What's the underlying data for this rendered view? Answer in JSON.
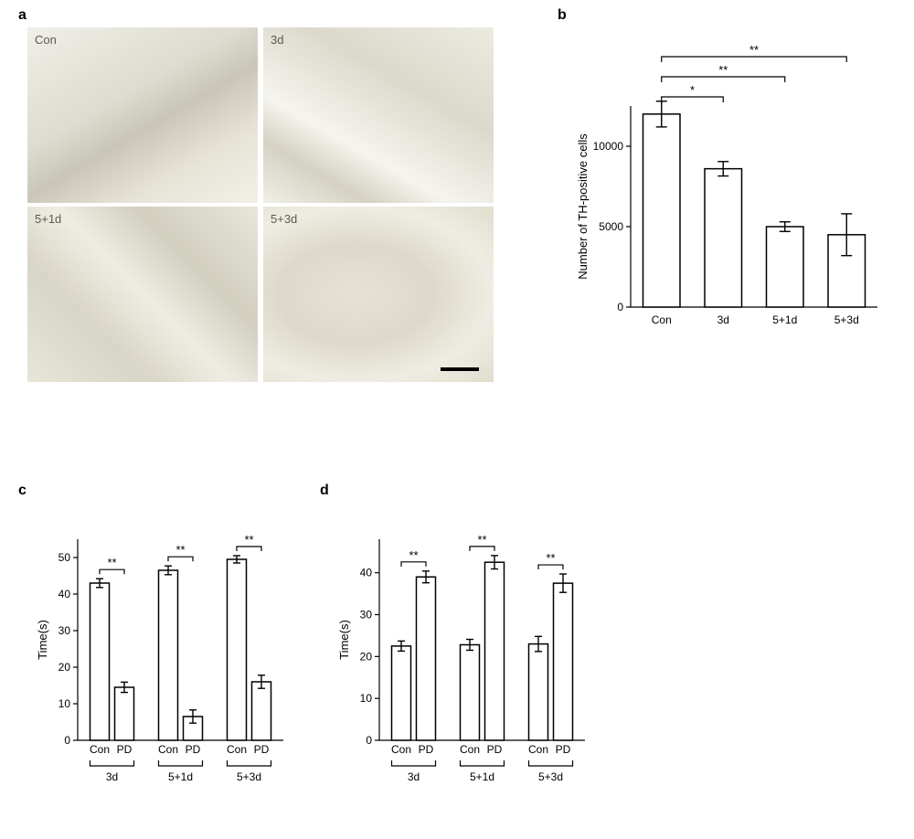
{
  "panelLabels": {
    "a": "a",
    "b": "b",
    "c": "c",
    "d": "d"
  },
  "micrographs": {
    "labels": [
      "Con",
      "3d",
      "5+1d",
      "5+3d"
    ]
  },
  "chartColors": {
    "barFill": "#ffffff",
    "barStroke": "#000000",
    "axis": "#000000"
  },
  "panelB": {
    "ylabel": "Number of TH-positive cells",
    "ymin": 0,
    "ymax": 12500,
    "yticks": [
      0,
      5000,
      10000
    ],
    "categories": [
      "Con",
      "3d",
      "5+1d",
      "5+3d"
    ],
    "values": [
      12000,
      8600,
      5000,
      4500
    ],
    "errors": [
      800,
      450,
      300,
      1300
    ],
    "sig": [
      {
        "from": 0,
        "to": 1,
        "label": "*",
        "level": 0
      },
      {
        "from": 0,
        "to": 2,
        "label": "**",
        "level": 1
      },
      {
        "from": 0,
        "to": 3,
        "label": "**",
        "level": 2
      }
    ]
  },
  "panelC": {
    "ylabel": "Time(s)",
    "ymin": 0,
    "ymax": 55,
    "yticks": [
      0,
      10,
      20,
      30,
      40,
      50
    ],
    "groups": [
      "3d",
      "5+1d",
      "5+3d"
    ],
    "subLabels": [
      "Con",
      "PD"
    ],
    "values": [
      43,
      14.5,
      46.5,
      6.5,
      49.5,
      16
    ],
    "errors": [
      1.2,
      1.4,
      1.2,
      1.8,
      1.0,
      1.8
    ],
    "sigLabel": "**"
  },
  "panelD": {
    "ylabel": "Time(s)",
    "ymin": 0,
    "ymax": 48,
    "yticks": [
      0,
      10,
      20,
      30,
      40
    ],
    "groups": [
      "3d",
      "5+1d",
      "5+3d"
    ],
    "subLabels": [
      "Con",
      "PD"
    ],
    "values": [
      22.5,
      39,
      22.8,
      42.5,
      23,
      37.5
    ],
    "errors": [
      1.2,
      1.4,
      1.3,
      1.6,
      1.8,
      2.2
    ],
    "sigLabel": "**"
  }
}
